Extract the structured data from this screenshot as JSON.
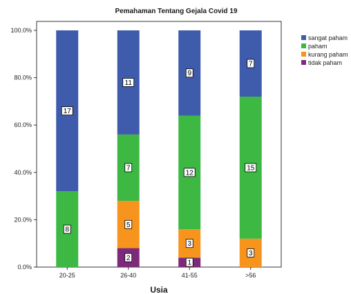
{
  "chart_data": {
    "type": "bar",
    "stacked": true,
    "percent": true,
    "title": "Pemahaman Tentang Gejala Covid 19",
    "xlabel": "Usia",
    "ylabel": "",
    "ylim": [
      0,
      100
    ],
    "yticks": [
      "0.0%",
      "20.0%",
      "40.0%",
      "60.0%",
      "80.0%",
      "100.0%"
    ],
    "categories": [
      "20-25",
      "26-40",
      "41-55",
      ">56"
    ],
    "legend_position": "right",
    "grid": false,
    "series": [
      {
        "name": "tidak paham",
        "color": "#7d2a7a",
        "counts": [
          0,
          2,
          1,
          0
        ],
        "labels": [
          "",
          "2",
          "1",
          ""
        ]
      },
      {
        "name": "kurang paham",
        "color": "#f7941d",
        "counts": [
          0,
          5,
          3,
          3
        ],
        "labels": [
          "",
          "5",
          "3",
          "3"
        ]
      },
      {
        "name": "paham",
        "color": "#3cb843",
        "counts": [
          8,
          7,
          12,
          15
        ],
        "labels": [
          "8",
          "7",
          "12",
          "15"
        ]
      },
      {
        "name": "sangat paham",
        "color": "#3f5bab",
        "counts": [
          17,
          11,
          9,
          7
        ],
        "labels": [
          "17",
          "11",
          "9",
          "7"
        ]
      }
    ],
    "legend_order": [
      "sangat paham",
      "paham",
      "kurang paham",
      "tidak paham"
    ]
  }
}
